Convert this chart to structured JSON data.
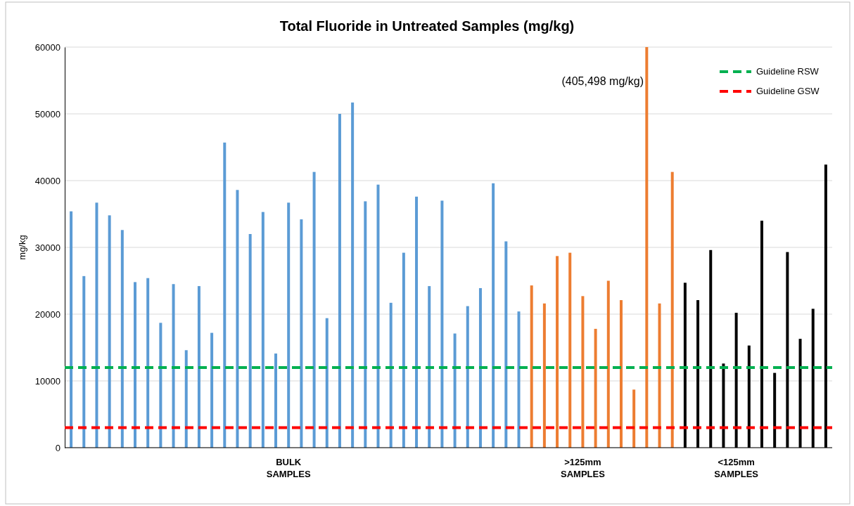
{
  "chart_data": {
    "type": "bar",
    "title": "Total Fluoride in Untreated Samples (mg/kg)",
    "ylabel": "mg/kg",
    "categories": [
      null,
      null,
      null,
      null,
      null,
      null,
      null,
      null,
      null,
      null,
      null,
      null,
      null,
      null,
      null,
      null,
      null,
      "BULK\nSAMPLES",
      null,
      null,
      null,
      null,
      null,
      null,
      null,
      null,
      null,
      null,
      null,
      null,
      null,
      null,
      null,
      null,
      null,
      null,
      null,
      null,
      null,
      null,
      ">125mm\nSAMPLES",
      null,
      null,
      null,
      null,
      null,
      null,
      null,
      null,
      null,
      null,
      null,
      "<125mm\nSAMPLES",
      null,
      null,
      null,
      null,
      null,
      null,
      null
    ],
    "values": [
      35400,
      25700,
      36700,
      34800,
      32600,
      24800,
      25400,
      18700,
      24500,
      14600,
      24200,
      17200,
      45700,
      38600,
      32000,
      35300,
      14100,
      36700,
      34200,
      41300,
      19400,
      50000,
      51700,
      36900,
      39400,
      21700,
      29200,
      37600,
      24200,
      37000,
      17100,
      21200,
      23900,
      39600,
      30900,
      20400,
      24300,
      21600,
      28700,
      29200,
      22700,
      17800,
      25000,
      22100,
      8700,
      60000,
      21600,
      41300,
      24700,
      22100,
      29600,
      12600,
      20200,
      15300,
      34000,
      11200,
      29300,
      16300,
      20800,
      42400
    ],
    "colors": [
      "#5b9bd5",
      "#5b9bd5",
      "#5b9bd5",
      "#5b9bd5",
      "#5b9bd5",
      "#5b9bd5",
      "#5b9bd5",
      "#5b9bd5",
      "#5b9bd5",
      "#5b9bd5",
      "#5b9bd5",
      "#5b9bd5",
      "#5b9bd5",
      "#5b9bd5",
      "#5b9bd5",
      "#5b9bd5",
      "#5b9bd5",
      "#5b9bd5",
      "#5b9bd5",
      "#5b9bd5",
      "#5b9bd5",
      "#5b9bd5",
      "#5b9bd5",
      "#5b9bd5",
      "#5b9bd5",
      "#5b9bd5",
      "#5b9bd5",
      "#5b9bd5",
      "#5b9bd5",
      "#5b9bd5",
      "#5b9bd5",
      "#5b9bd5",
      "#5b9bd5",
      "#5b9bd5",
      "#5b9bd5",
      "#5b9bd5",
      "#ed7d31",
      "#ed7d31",
      "#ed7d31",
      "#ed7d31",
      "#ed7d31",
      "#ed7d31",
      "#ed7d31",
      "#ed7d31",
      "#ed7d31",
      "#ed7d31",
      "#ed7d31",
      "#ed7d31",
      "#000000",
      "#000000",
      "#000000",
      "#000000",
      "#000000",
      "#000000",
      "#000000",
      "#000000",
      "#000000",
      "#000000",
      "#000000",
      "#000000"
    ],
    "ylim": [
      0,
      60000
    ],
    "yticks": [
      0,
      10000,
      20000,
      30000,
      40000,
      50000,
      60000
    ],
    "grid": "y",
    "ref_lines": [
      {
        "axis": "y",
        "value": 12000,
        "label": "Guideline RSW",
        "color": "#00b050",
        "line_style": "dashed"
      },
      {
        "axis": "y",
        "value": 3000,
        "label": "Guideline GSW",
        "color": "#ff0000",
        "line_style": "dashed"
      }
    ],
    "legend": "top right",
    "annotations": [
      "(405,498 mg/kg)"
    ]
  }
}
